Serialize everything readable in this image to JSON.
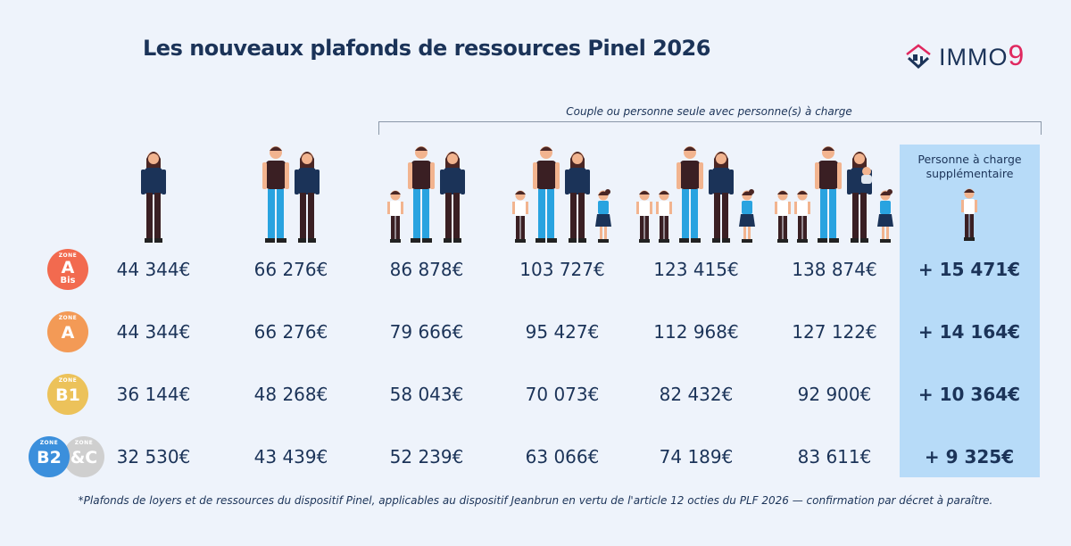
{
  "title": "Les nouveaux plafonds de ressources Pinel 2026",
  "logo": {
    "text": "IMMO",
    "accent": "9",
    "accent_color": "#e0285f"
  },
  "group_label": "Couple ou personne seule avec personne(s) à charge",
  "extra_header": "Personne à charge supplémentaire",
  "columns": [
    {
      "figures": [
        "woman"
      ]
    },
    {
      "figures": [
        "man",
        "woman"
      ]
    },
    {
      "figures": [
        "boy",
        "man",
        "woman"
      ]
    },
    {
      "figures": [
        "boy",
        "man",
        "woman",
        "girl"
      ]
    },
    {
      "figures": [
        "boy",
        "boy",
        "man",
        "woman",
        "girl"
      ]
    },
    {
      "figures": [
        "boy",
        "boy",
        "man",
        "woman-with-baby",
        "girl"
      ]
    },
    {
      "figures": [
        "boy"
      ]
    }
  ],
  "rows": [
    {
      "zone_tag": "ZONE",
      "zone": "A",
      "zone_sub": "Bis",
      "color": "#f26a4f",
      "values": [
        "44 344€",
        "66 276€",
        "86 878€",
        "103 727€",
        "123 415€",
        "138 874€"
      ],
      "extra": "+ 15 471€"
    },
    {
      "zone_tag": "ZONE",
      "zone": "A",
      "zone_sub": "",
      "color": "#f39a56",
      "values": [
        "44 344€",
        "66 276€",
        "79 666€",
        "95 427€",
        "112 968€",
        "127 122€"
      ],
      "extra": "+ 14 164€"
    },
    {
      "zone_tag": "ZONE",
      "zone": "B1",
      "zone_sub": "",
      "color": "#ecc25a",
      "values": [
        "36 144€",
        "48 268€",
        "58 043€",
        "70 073€",
        "82 432€",
        "92 900€"
      ],
      "extra": "+ 10 364€"
    },
    {
      "zone_tag": "ZONE",
      "zone": "B2",
      "zone_sub": "",
      "color": "#3b8fdc",
      "zone2": "&C",
      "color2": "#cfcfcf",
      "values": [
        "32 530€",
        "43 439€",
        "52 239€",
        "63 066€",
        "74 189€",
        "83 611€"
      ],
      "extra": "+ 9 325€"
    }
  ],
  "footnote": "*Plafonds de loyers et de ressources du dispositif Pinel, applicables au dispositif Jeanbrun en vertu de l'article 12 octies du PLF 2026 — confirmation par décret à paraître."
}
